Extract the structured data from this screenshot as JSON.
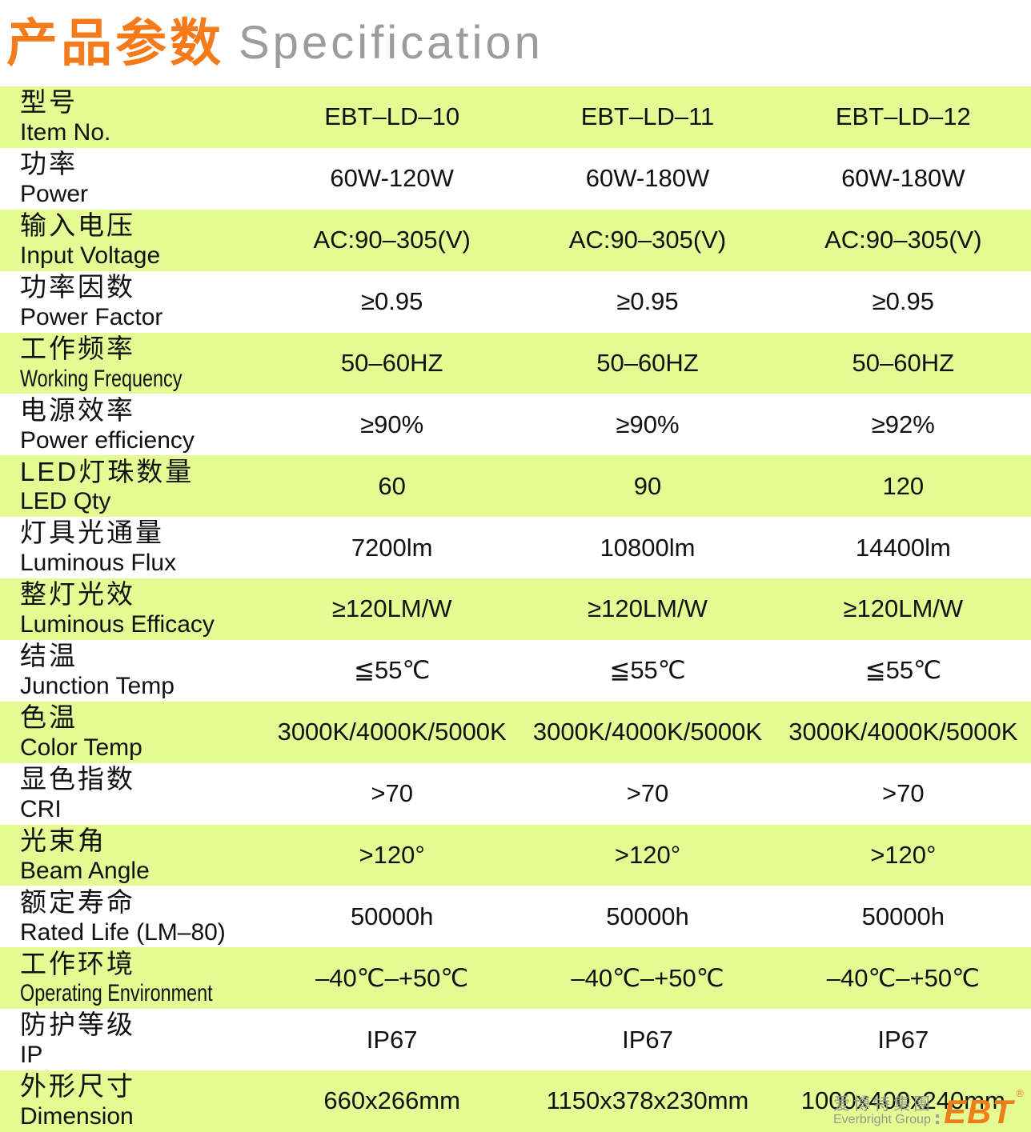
{
  "title": {
    "cn": "产品参数",
    "en": "Specification"
  },
  "table": {
    "rows": [
      {
        "cn": "型号",
        "en": "Item No.",
        "condensed": false,
        "values": [
          "EBT–LD–10",
          "EBT–LD–11",
          "EBT–LD–12"
        ]
      },
      {
        "cn": "功率",
        "en": "Power",
        "condensed": false,
        "values": [
          "60W-120W",
          "60W-180W",
          "60W-180W"
        ]
      },
      {
        "cn": "输入电压",
        "en": "Input Voltage",
        "condensed": false,
        "values": [
          "AC:90–305(V)",
          "AC:90–305(V)",
          "AC:90–305(V)"
        ]
      },
      {
        "cn": "功率因数",
        "en": "Power Factor",
        "condensed": false,
        "values": [
          "≥0.95",
          "≥0.95",
          "≥0.95"
        ]
      },
      {
        "cn": "工作频率",
        "en": "Working Frequency",
        "condensed": true,
        "values": [
          "50–60HZ",
          "50–60HZ",
          "50–60HZ"
        ]
      },
      {
        "cn": "电源效率",
        "en": "Power efficiency",
        "condensed": false,
        "values": [
          "≥90%",
          "≥90%",
          "≥92%"
        ]
      },
      {
        "cn": "LED灯珠数量",
        "en": "LED Qty",
        "condensed": false,
        "values": [
          "60",
          "90",
          "120"
        ]
      },
      {
        "cn": "灯具光通量",
        "en": "Luminous Flux",
        "condensed": false,
        "values": [
          "7200lm",
          "10800lm",
          "14400lm"
        ]
      },
      {
        "cn": "整灯光效",
        "en": "Luminous Efficacy",
        "condensed": false,
        "values": [
          "≥120LM/W",
          "≥120LM/W",
          "≥120LM/W"
        ]
      },
      {
        "cn": "结温",
        "en": "Junction Temp",
        "condensed": false,
        "values": [
          "≦55℃",
          "≦55℃",
          "≦55℃"
        ]
      },
      {
        "cn": "色温",
        "en": "Color Temp",
        "condensed": false,
        "values": [
          "3000K/4000K/5000K",
          "3000K/4000K/5000K",
          "3000K/4000K/5000K"
        ]
      },
      {
        "cn": "显色指数",
        "en": "CRI",
        "condensed": false,
        "values": [
          ">70",
          ">70",
          ">70"
        ]
      },
      {
        "cn": "光束角",
        "en": "Beam Angle",
        "condensed": false,
        "values": [
          ">120°",
          ">120°",
          ">120°"
        ]
      },
      {
        "cn": "额定寿命",
        "en": "Rated Life (LM–80)",
        "condensed": false,
        "values": [
          "50000h",
          "50000h",
          "50000h"
        ]
      },
      {
        "cn": "工作环境",
        "en": "Operating Environment",
        "condensed": true,
        "values": [
          "–40℃–+50℃",
          "–40℃–+50℃",
          "–40℃–+50℃"
        ]
      },
      {
        "cn": "防护等级",
        "en": "IP",
        "condensed": false,
        "values": [
          "IP67",
          "IP67",
          "IP67"
        ]
      },
      {
        "cn": "外形尺寸",
        "en": "Dimension",
        "condensed": false,
        "values": [
          "660x266mm",
          "1150x378x230mm",
          "1000x400x240mm"
        ]
      }
    ]
  },
  "logo": {
    "cn": "爱博特集團",
    "en": "Everbright Group",
    "brand": "EBT",
    "reg": "®"
  },
  "colors": {
    "row_green": "#e4fa92",
    "title_orange": "#f57b1a",
    "title_gray": "#9c9c9c",
    "brand_orange": "#ee7e1c",
    "logo_gray": "#8f9c8c",
    "text": "#111111"
  }
}
